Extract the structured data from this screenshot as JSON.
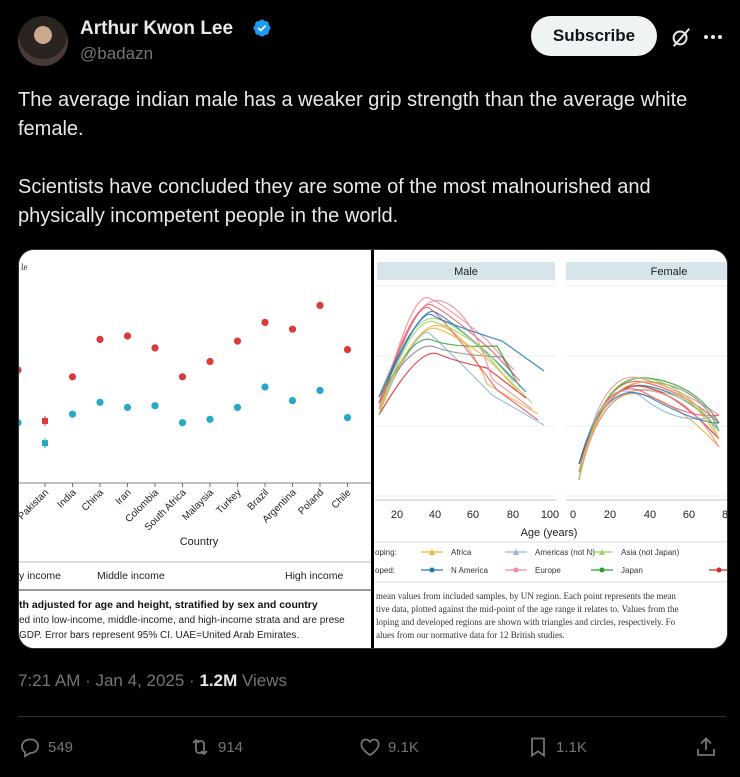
{
  "author": {
    "name": "Arthur Kwon Lee",
    "handle": "@badazn",
    "verified": true,
    "subscribe_label": "Subscribe"
  },
  "tweet": {
    "paragraphs": [
      "The average indian male has a weaker grip strength than the average white female.",
      "Scientists have concluded they are some of the most malnourished and physically incompetent people in the world."
    ],
    "time": "7:21 AM · Jan 4, 2025 ·",
    "views_count": "1.2M",
    "views_label": "Views"
  },
  "stats": {
    "replies": "549",
    "reposts": "914",
    "likes": "9.1K",
    "bookmarks": "1.1K"
  },
  "media": {
    "left_figure": {
      "corner_text": "le",
      "countries": [
        "Pakistan",
        "India",
        "China",
        "Iran",
        "Colombia",
        "South Africa",
        "Malaysia",
        "Turkey",
        "Brazil",
        "Argentina",
        "Poland",
        "Chile"
      ],
      "male_values": [
        20,
        46,
        68,
        70,
        63,
        46,
        55,
        67,
        78,
        74,
        88,
        62
      ],
      "female_values": [
        7,
        24,
        31,
        28,
        29,
        19,
        21,
        28,
        40,
        32,
        38,
        22
      ],
      "edge_male_value": 50,
      "edge_female_value": 19,
      "x_title": "Country",
      "income_groups": [
        "y income",
        "Middle income",
        "High income"
      ],
      "caption_bold": "th adjusted for age and height, stratified by sex and country",
      "caption_lines": [
        "ed into low-income, middle-income, and high-income strata and are prese",
        "GDP. Error bars represent 95% CI. UAE=United Arab Emirates."
      ],
      "colors": {
        "male": "#d93a3a",
        "female": "#25a9c4"
      }
    },
    "right_figure": {
      "panel_titles": [
        "Male",
        "Female"
      ],
      "male_ticks": [
        "20",
        "40",
        "60",
        "80",
        "100"
      ],
      "female_ticks": [
        "0",
        "20",
        "40",
        "60",
        "8"
      ],
      "x_label": "Age (years)",
      "legend_row_labels": [
        "oping:",
        "oped:"
      ],
      "legend_items": [
        "Africa",
        "Americas (not N)",
        "Asia (not Japan)",
        "N America",
        "Europe",
        "Japan"
      ],
      "legend_colors": [
        "#f0b43c",
        "#8fb5e0",
        "#9ed26a",
        "#1f77b4",
        "#f08a9a",
        "#2ca02c"
      ],
      "caption_lines": [
        "mean values from included samples, by UN region. Each point represents the mean",
        "tive data, plotted against the mid-point of the age range it relates to. Values from the",
        "loping and developed regions are shown with triangles and circles, respectively. Fo",
        "alues from our normative data for 12 British studies."
      ]
    }
  }
}
